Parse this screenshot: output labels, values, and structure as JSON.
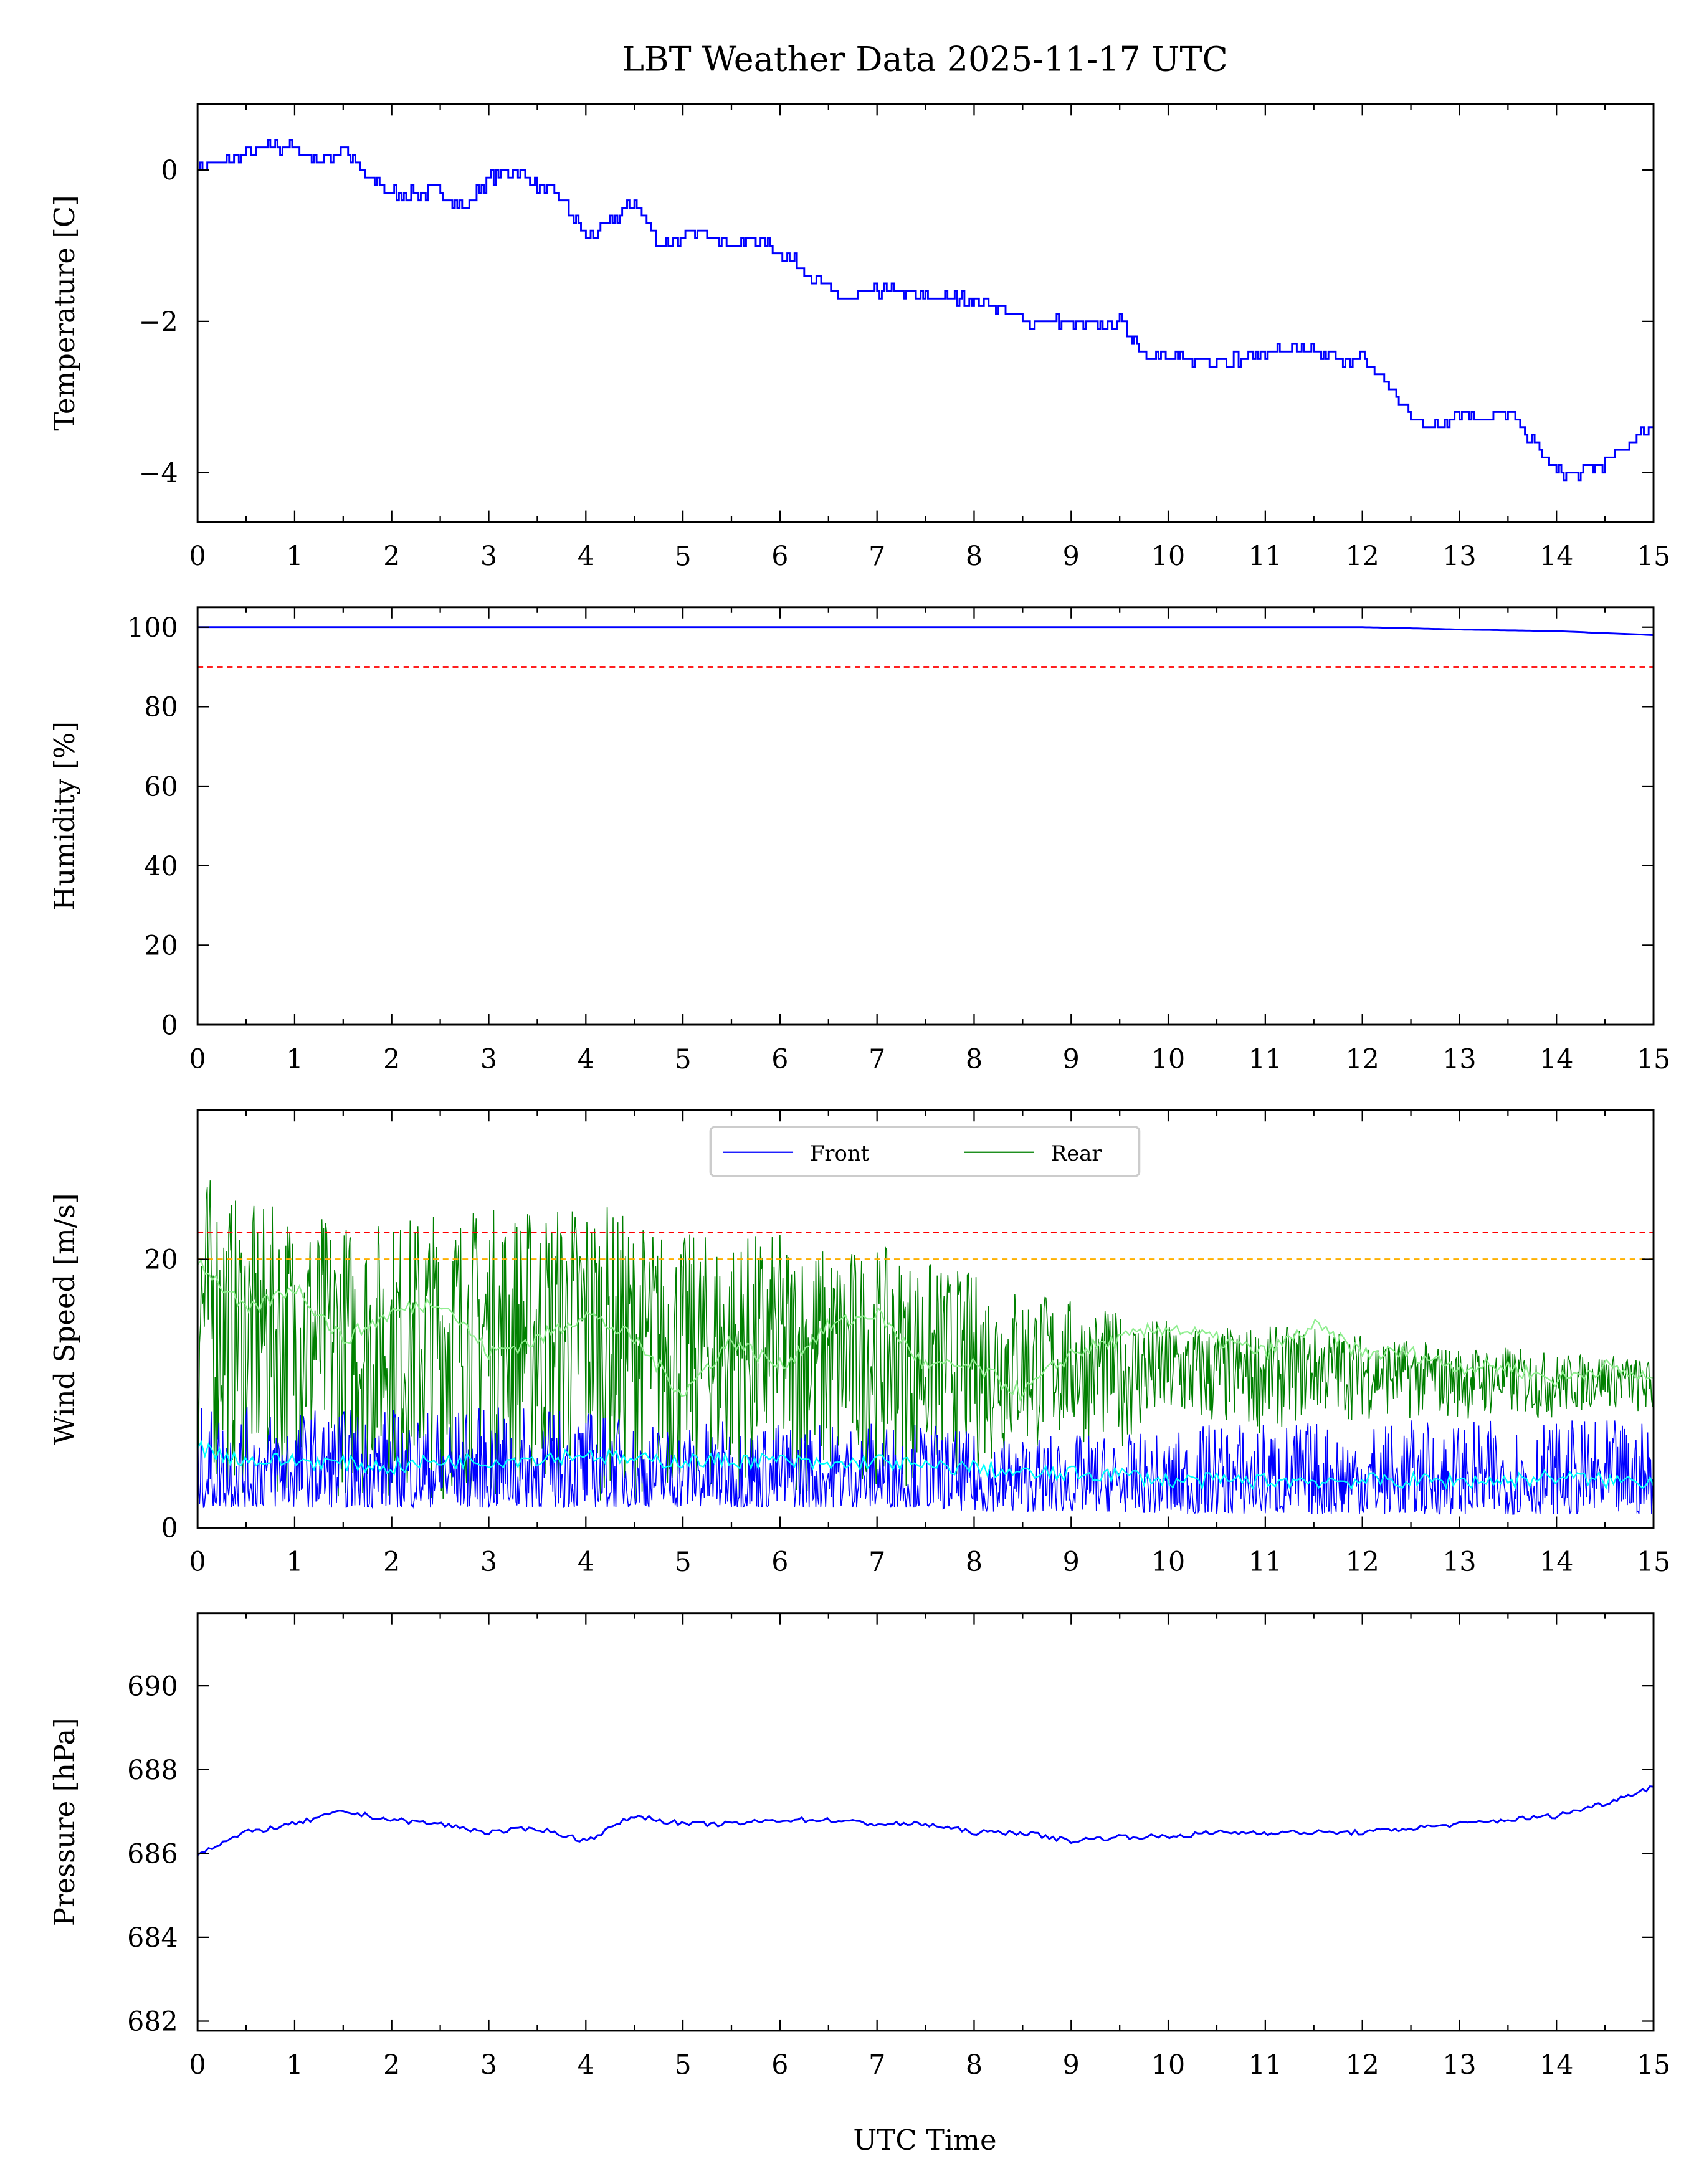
{
  "title": "LBT Weather Data 2025-11-17 UTC",
  "xlabel": "UTC Time",
  "xticks": [
    "0",
    "1",
    "2",
    "3",
    "4",
    "5",
    "6",
    "7",
    "8",
    "9",
    "10",
    "11",
    "12",
    "13",
    "14",
    "15"
  ],
  "colors": {
    "front": "#0000ff",
    "rear": "#008000",
    "front_mean": "#00ffff",
    "rear_mean": "#90ee90",
    "red_limit": "#ff0000",
    "orange_limit": "#ffb000"
  },
  "chart_data": [
    {
      "type": "line",
      "ylabel": "Temperature [C]",
      "xlim": [
        0,
        15
      ],
      "ylim": [
        -4.65,
        0.87
      ],
      "yticks": [
        {
          "v": 0,
          "label": "0"
        },
        {
          "v": -2,
          "label": "−2"
        },
        {
          "v": -4,
          "label": "−4"
        }
      ],
      "step": 0.25,
      "series": [
        {
          "name": "Temperature",
          "color": "#0000ff",
          "values": [
            0.05,
            0.1,
            0.2,
            0.3,
            0.3,
            0.1,
            0.3,
            -0.1,
            -0.3,
            -0.3,
            -0.3,
            -0.5,
            -0.1,
            0.0,
            -0.2,
            -0.4,
            -0.9,
            -0.7,
            -0.4,
            -1.0,
            -0.9,
            -0.8,
            -1.0,
            -0.9,
            -1.1,
            -1.3,
            -1.6,
            -1.7,
            -1.6,
            -1.6,
            -1.7,
            -1.7,
            -1.7,
            -1.8,
            -2.0,
            -2.0,
            -2.0,
            -2.1,
            -2.0,
            -2.4,
            -2.5,
            -2.5,
            -2.5,
            -2.5,
            -2.4,
            -2.4,
            -2.4,
            -2.5,
            -2.5,
            -2.8,
            -3.3,
            -3.4,
            -3.2,
            -3.3,
            -3.2,
            -3.6,
            -4.0,
            -4.0,
            -3.9,
            -3.6,
            -3.4
          ]
        }
      ]
    },
    {
      "type": "line",
      "ylabel": "Humidity [%]",
      "xlim": [
        0,
        15
      ],
      "ylim": [
        0,
        105
      ],
      "yticks": [
        {
          "v": 0,
          "label": "0"
        },
        {
          "v": 20,
          "label": "20"
        },
        {
          "v": 40,
          "label": "40"
        },
        {
          "v": 60,
          "label": "60"
        },
        {
          "v": 80,
          "label": "80"
        },
        {
          "v": 100,
          "label": "100"
        }
      ],
      "step": 1,
      "series": [
        {
          "name": "Humidity",
          "color": "#0000ff",
          "values": [
            100,
            100,
            100,
            100,
            100,
            100,
            100,
            100,
            100,
            100,
            100,
            100,
            100,
            99.4,
            99,
            98
          ]
        }
      ],
      "hlines": [
        {
          "y": 90,
          "color": "#ff0000"
        }
      ]
    },
    {
      "type": "line",
      "ylabel": "Wind Speed [m/s]",
      "xlim": [
        0,
        15
      ],
      "ylim": [
        0,
        31.1
      ],
      "yticks": [
        {
          "v": 0,
          "label": "0"
        },
        {
          "v": 20,
          "label": "20"
        }
      ],
      "legend": {
        "position": "top-center",
        "entries": [
          "Front",
          "Rear"
        ]
      },
      "step": 0.5,
      "series": [
        {
          "name": "Rear",
          "color": "#008000",
          "max_envelope": [
            27,
            24,
            24,
            23,
            23,
            24,
            24,
            24,
            25,
            23,
            22,
            22,
            22,
            21,
            21,
            20,
            19,
            18,
            17,
            16,
            15.5,
            15,
            15,
            15,
            14.5,
            14,
            13.5,
            13.5,
            13,
            13,
            12.5
          ],
          "min_envelope": [
            3,
            2,
            2,
            2,
            2,
            2,
            2,
            2,
            2,
            2,
            2,
            2,
            2,
            2,
            3,
            3,
            4,
            5,
            6,
            6,
            7,
            7,
            7,
            8,
            8,
            8,
            8,
            8,
            8,
            9,
            8
          ]
        },
        {
          "name": "Rear (mean)",
          "color": "#90ee90",
          "values": [
            20,
            16,
            18,
            14,
            16,
            17,
            13,
            14,
            16,
            14,
            10,
            14,
            12,
            15,
            16,
            12,
            12,
            10,
            13,
            14,
            15,
            14,
            13,
            15,
            13,
            13,
            12,
            12,
            11,
            12,
            11
          ]
        },
        {
          "name": "Front",
          "color": "#0000ff",
          "max_envelope": [
            9,
            9,
            9,
            9,
            9,
            9,
            9,
            9,
            9,
            8,
            8,
            8,
            8,
            8,
            8,
            8,
            7,
            7,
            7,
            7,
            7,
            8,
            8,
            8,
            8,
            8,
            8,
            8,
            8,
            8,
            8
          ],
          "min_envelope": [
            1.5,
            1.5,
            1.5,
            1.5,
            1.5,
            1.5,
            1.5,
            1.5,
            1.5,
            1.5,
            1.5,
            1.5,
            1.5,
            1.5,
            1.5,
            1.5,
            1.2,
            1.2,
            1.2,
            1.2,
            1,
            1,
            1,
            1,
            1,
            1,
            1,
            1,
            1,
            1,
            1
          ]
        },
        {
          "name": "Front (mean)",
          "color": "#00ffff",
          "values": [
            6,
            5,
            5,
            4.8,
            4.5,
            5,
            5,
            5.2,
            5.5,
            5,
            5,
            5,
            5,
            4.6,
            5,
            4.5,
            4.5,
            4,
            4,
            4,
            3.5,
            3.5,
            3.5,
            3.5,
            3.5,
            3.5,
            3.5,
            3.5,
            3.8,
            3.5,
            3.5
          ]
        }
      ],
      "hlines": [
        {
          "y": 22,
          "color": "#ff0000"
        },
        {
          "y": 20,
          "color": "#ffb000"
        }
      ]
    },
    {
      "type": "line",
      "ylabel": "Pressure [hPa]",
      "xlim": [
        0,
        15
      ],
      "ylim": [
        681.77,
        691.73
      ],
      "yticks": [
        {
          "v": 682,
          "label": "682"
        },
        {
          "v": 684,
          "label": "684"
        },
        {
          "v": 686,
          "label": "686"
        },
        {
          "v": 688,
          "label": "688"
        },
        {
          "v": 690,
          "label": "690"
        }
      ],
      "step": 0.5,
      "series": [
        {
          "name": "Pressure",
          "color": "#0000ff",
          "values": [
            686.0,
            686.5,
            686.7,
            687.0,
            686.8,
            686.7,
            686.5,
            686.6,
            686.3,
            686.9,
            686.7,
            686.7,
            686.8,
            686.8,
            686.7,
            686.7,
            686.5,
            686.5,
            686.3,
            686.4,
            686.4,
            686.5,
            686.5,
            686.5,
            686.5,
            686.6,
            686.7,
            686.8,
            686.9,
            687.2,
            687.6
          ]
        }
      ]
    }
  ]
}
